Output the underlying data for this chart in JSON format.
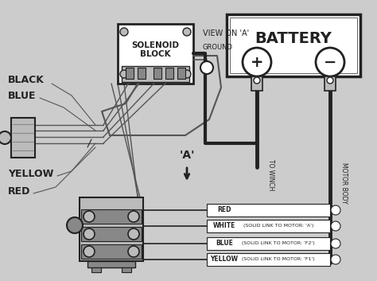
{
  "bg_color": "#cccccc",
  "line_color": "#555555",
  "dark_color": "#222222",
  "white": "#ffffff",
  "light_gray": "#bbbbbb",
  "mid_gray": "#888888",
  "box_fill": "#e8e8e8",
  "labels": {
    "battery": "BATTERY",
    "solenoid": "SOLENOID\nBLOCK",
    "view_on_a": "VIEW ON 'A'",
    "ground": "GROUND",
    "black": "BLACK",
    "blue": "BLUE",
    "yellow": "YELLOW",
    "red": "RED",
    "a_marker": "'A'",
    "red_wire": "RED",
    "white_wire": "WHITE",
    "blue_wire": "BLUE",
    "yellow_wire": "YELLOW",
    "solid_a": "(SOLID LINK TO MOTOR: 'A')",
    "solid_f2": "(SOLID LINK TO MOTOR: 'F2')",
    "solid_f1": "(SOLID LINK TO MOTOR: 'F1')",
    "to_winch": "TO WINCH",
    "motor_body": "MOTOR BODY"
  }
}
